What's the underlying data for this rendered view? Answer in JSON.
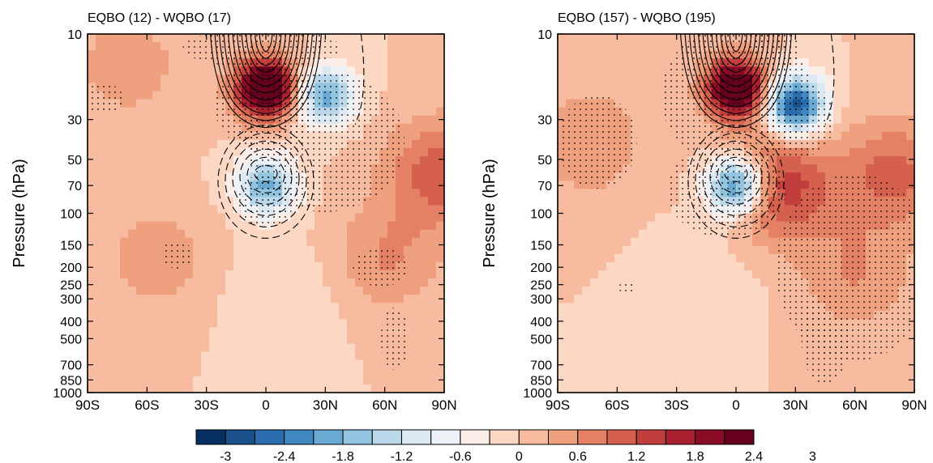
{
  "colors": {
    "scale": [
      "#053061",
      "#1a4f8a",
      "#2a6cae",
      "#3f88c0",
      "#6aa9d1",
      "#94c5e0",
      "#bad8ea",
      "#dde9f2",
      "#eef2f6",
      "#fbeee8",
      "#fcd7c4",
      "#f7bba0",
      "#efa07f",
      "#e48164",
      "#d4604d",
      "#c13e3d",
      "#a8202f",
      "#8a0b26",
      "#67001f"
    ],
    "contour": "#000000",
    "frame": "#000000"
  },
  "chart_data": [
    {
      "type": "heatmap",
      "title": "EQBO (12) - WQBO (17)",
      "ylabel": "Pressure (hPa)",
      "xlabel": "",
      "x_ticks": [
        "90S",
        "60S",
        "30S",
        "0",
        "30N",
        "60N",
        "90N"
      ],
      "x_range": [
        -90,
        90
      ],
      "y_ticks": [
        "10",
        "30",
        "50",
        "70",
        "100",
        "150",
        "200",
        "250",
        "300",
        "400",
        "500",
        "700",
        "850",
        "1000"
      ],
      "y_range": [
        1000,
        10
      ],
      "y_scale": "log",
      "stippling": "statistically significant regions",
      "anomalies": [
        {
          "lat": 0,
          "p": 20,
          "value": 3.2
        },
        {
          "lat": 30,
          "p": 22,
          "value": -2.0
        },
        {
          "lat": 0,
          "p": 70,
          "value": -1.9
        },
        {
          "lat": 88,
          "p": 60,
          "value": 1.1
        },
        {
          "lat": -55,
          "p": 180,
          "value": 0.5
        },
        {
          "lat": 60,
          "p": 180,
          "value": 0.6
        },
        {
          "lat": -70,
          "p": 15,
          "value": 0.5
        },
        {
          "lat": 10,
          "p": 300,
          "value": -0.3
        }
      ],
      "contours": [
        {
          "style": "solid",
          "center_lat": 0,
          "center_p": 10
        },
        {
          "style": "dashed",
          "center_lat": 0,
          "center_p": 55
        }
      ]
    },
    {
      "type": "heatmap",
      "title": "EQBO (157) - WQBO (195)",
      "ylabel": "Pressure (hPa)",
      "xlabel": "",
      "x_ticks": [
        "90S",
        "60S",
        "30S",
        "0",
        "30N",
        "60N",
        "90N"
      ],
      "x_range": [
        -90,
        90
      ],
      "y_ticks": [
        "10",
        "30",
        "50",
        "70",
        "100",
        "150",
        "200",
        "250",
        "300",
        "400",
        "500",
        "700",
        "850",
        "1000"
      ],
      "y_range": [
        1000,
        10
      ],
      "y_scale": "log",
      "stippling": "statistically significant regions",
      "anomalies": [
        {
          "lat": 0,
          "p": 20,
          "value": 3.0
        },
        {
          "lat": 30,
          "p": 25,
          "value": -3.0
        },
        {
          "lat": 0,
          "p": 70,
          "value": -2.8
        },
        {
          "lat": 20,
          "p": 70,
          "value": 1.5
        },
        {
          "lat": 80,
          "p": 60,
          "value": 1.0
        },
        {
          "lat": -75,
          "p": 40,
          "value": 0.6
        },
        {
          "lat": 60,
          "p": 220,
          "value": 0.6
        },
        {
          "lat": -10,
          "p": 200,
          "value": -0.2
        }
      ],
      "contours": [
        {
          "style": "solid",
          "center_lat": 0,
          "center_p": 10
        },
        {
          "style": "dashed",
          "center_lat": 0,
          "center_p": 55
        }
      ]
    }
  ],
  "colorbar": {
    "labels": [
      "-3",
      "-2.4",
      "-1.8",
      "-1.2",
      "-0.6",
      "0",
      "0.6",
      "1.2",
      "1.8",
      "2.4",
      "3"
    ],
    "levels": [
      -3.2,
      -3,
      -2.7,
      -2.4,
      -2.1,
      -1.8,
      -1.5,
      -1.2,
      -0.9,
      -0.6,
      -0.3,
      0,
      0.3,
      0.6,
      0.9,
      1.2,
      1.5,
      1.8,
      2.1,
      2.4,
      2.7,
      3,
      3.2
    ]
  }
}
